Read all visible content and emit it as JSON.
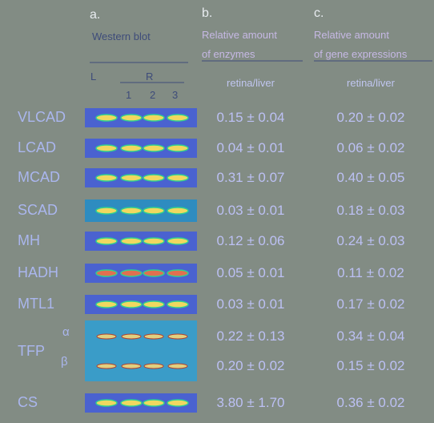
{
  "header": {
    "a": {
      "label": "a.",
      "title": "Western blot",
      "lanes": {
        "left": "L",
        "right": "R",
        "numbers": [
          "1",
          "2",
          "3"
        ]
      }
    },
    "b": {
      "label": "b.",
      "title": [
        "Relative amount",
        "of enzymes"
      ],
      "unit": "retina/liver"
    },
    "c": {
      "label": "c.",
      "title": [
        "Relative amount",
        "of gene expressions"
      ],
      "unit": "retina/liver"
    }
  },
  "rows": [
    {
      "name": "VLCAD",
      "b": "0.15 ± 0.04",
      "c": "0.20 ± 0.02"
    },
    {
      "name": "LCAD",
      "b": "0.04 ± 0.01",
      "c": "0.06 ± 0.02"
    },
    {
      "name": "MCAD",
      "b": "0.31 ± 0.07",
      "c": "0.40 ± 0.05"
    },
    {
      "name": "SCAD",
      "b": "0.03 ± 0.01",
      "c": "0.18 ± 0.03"
    },
    {
      "name": "MH",
      "b": "0.12 ± 0.06",
      "c": "0.24 ± 0.03"
    },
    {
      "name": "HADH",
      "b": "0.05 ± 0.01",
      "c": "0.11 ± 0.02"
    },
    {
      "name": "MTL1",
      "b": "0.03 ± 0.01",
      "c": "0.17 ± 0.02"
    },
    {
      "name": "TFP",
      "subrows": [
        {
          "name": "α",
          "b": "0.22 ± 0.13",
          "c": "0.34 ± 0.04"
        },
        {
          "name": "β",
          "b": "0.20 ± 0.02",
          "c": "0.15 ± 0.02"
        }
      ]
    },
    {
      "name": "CS",
      "b": "3.80 ± 1.70",
      "c": "0.36 ± 0.02"
    }
  ]
}
